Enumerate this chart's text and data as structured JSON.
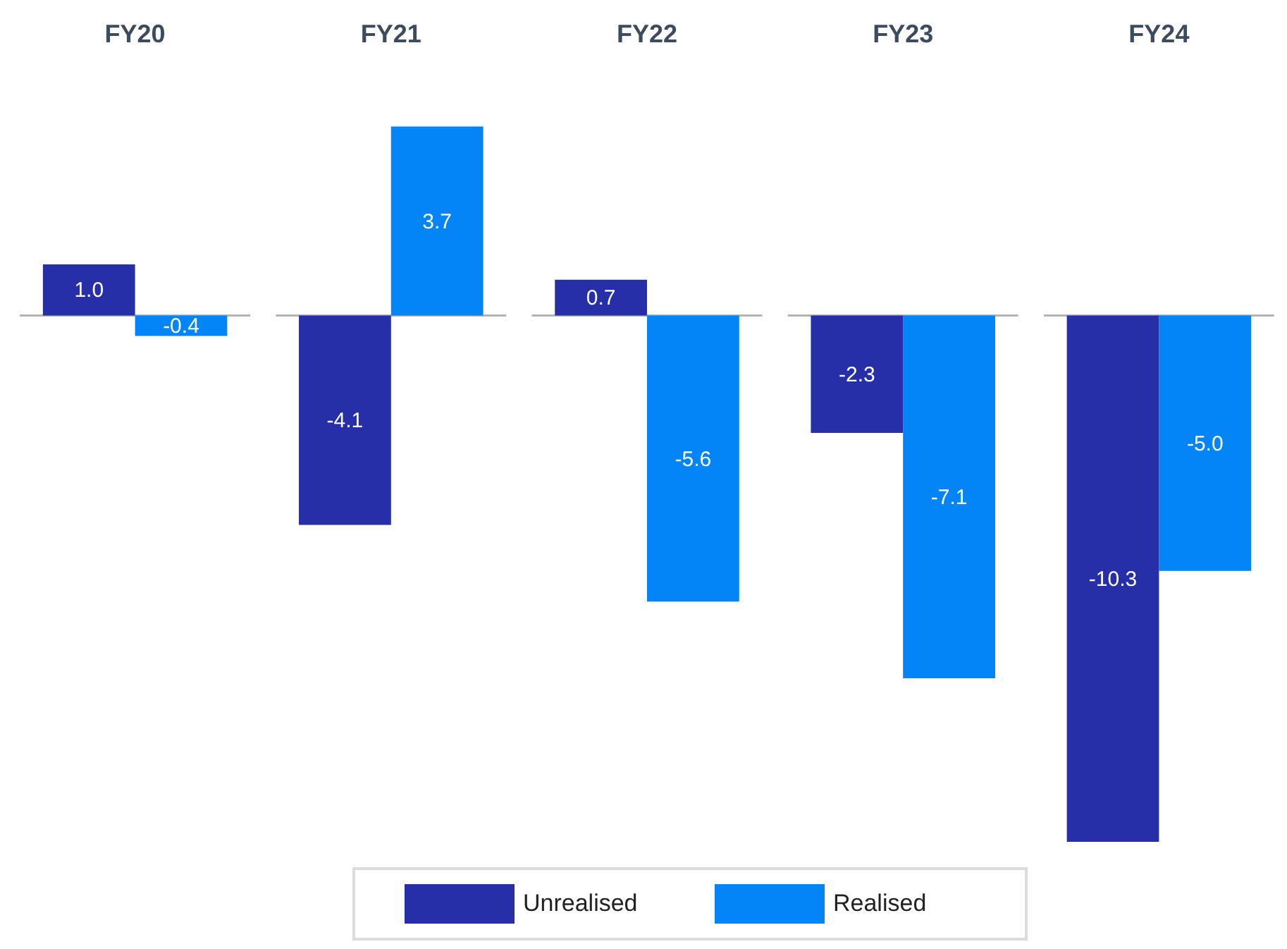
{
  "chart_data": {
    "type": "bar",
    "categories": [
      "FY20",
      "FY21",
      "FY22",
      "FY23",
      "FY24"
    ],
    "series": [
      {
        "name": "Unrealised",
        "color": "#262fa8",
        "values": [
          1.0,
          -4.1,
          0.7,
          -2.3,
          -10.3
        ],
        "value_labels": [
          "1.0",
          "-4.1",
          "0.7",
          "-2.3",
          "-10.3"
        ]
      },
      {
        "name": "Realised",
        "color": "#0385f8",
        "values": [
          -0.4,
          3.7,
          -5.6,
          -7.1,
          -5.0
        ],
        "value_labels": [
          "-0.4",
          "3.7",
          "-5.6",
          "-7.1",
          "-5.0"
        ]
      }
    ],
    "ref_lines": [
      {
        "axis": "y",
        "value": 0,
        "color": "#b4b4b4"
      }
    ],
    "legend": "bottom",
    "tick_labels": "x"
  }
}
